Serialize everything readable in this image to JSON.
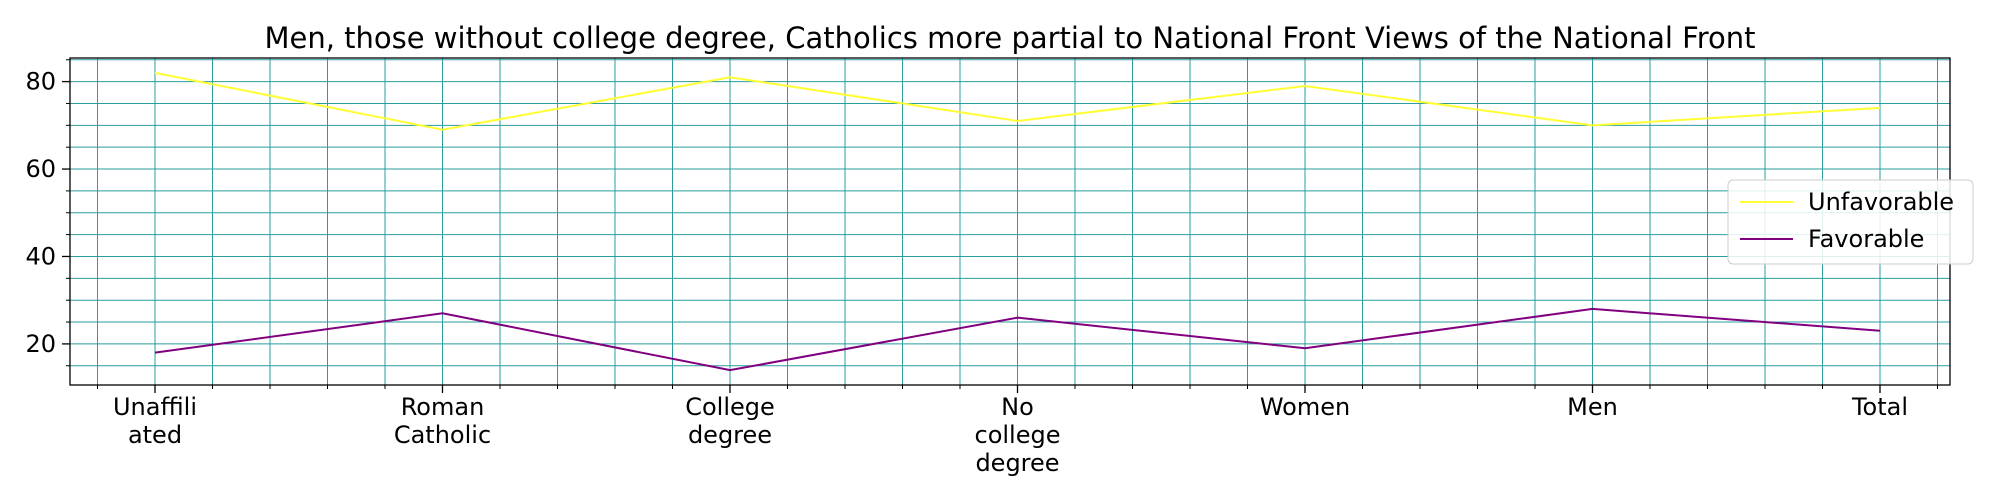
{
  "chart_data": {
    "type": "line",
    "title": "Men, those without college degree, Catholics more partial to National Front Views of the National Front",
    "xlabel": "",
    "ylabel": "",
    "categories": [
      [
        "Unaffili",
        "ated"
      ],
      [
        "Roman",
        "Catholic"
      ],
      [
        "College",
        "degree"
      ],
      [
        "No",
        "college",
        "degree"
      ],
      [
        "Women"
      ],
      [
        "Men"
      ],
      [
        "Total"
      ]
    ],
    "series": [
      {
        "name": "Unfavorable",
        "color": "#ffff33",
        "values": [
          82,
          69,
          81,
          71,
          79,
          70,
          74
        ]
      },
      {
        "name": "Favorable",
        "color": "#800080",
        "values": [
          18,
          27,
          14,
          26,
          19,
          28,
          23
        ]
      }
    ],
    "ylim": [
      10.6,
      85.4
    ],
    "yticks": [
      20,
      40,
      60,
      80
    ],
    "grid": true,
    "grid_color": "#2a9d9d",
    "legend_position": "center-right"
  }
}
